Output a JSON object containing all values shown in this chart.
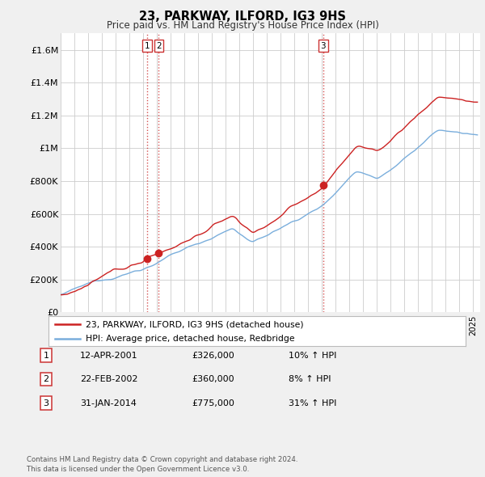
{
  "title": "23, PARKWAY, ILFORD, IG3 9HS",
  "subtitle": "Price paid vs. HM Land Registry's House Price Index (HPI)",
  "ylabel_ticks": [
    "£0",
    "£200K",
    "£400K",
    "£600K",
    "£800K",
    "£1M",
    "£1.2M",
    "£1.4M",
    "£1.6M"
  ],
  "ytick_values": [
    0,
    200000,
    400000,
    600000,
    800000,
    1000000,
    1200000,
    1400000,
    1600000
  ],
  "ylim": [
    0,
    1700000
  ],
  "xlim_start": 1995.0,
  "xlim_end": 2025.5,
  "sale_dates": [
    2001.28,
    2002.14,
    2014.08
  ],
  "sale_prices": [
    326000,
    360000,
    775000
  ],
  "sale_labels": [
    "1",
    "2",
    "3"
  ],
  "vline_color": "#cc3333",
  "dot_color": "#cc2222",
  "legend_label_red": "23, PARKWAY, ILFORD, IG3 9HS (detached house)",
  "legend_label_blue": "HPI: Average price, detached house, Redbridge",
  "table_rows": [
    [
      "1",
      "12-APR-2001",
      "£326,000",
      "10% ↑ HPI"
    ],
    [
      "2",
      "22-FEB-2002",
      "£360,000",
      "8% ↑ HPI"
    ],
    [
      "3",
      "31-JAN-2014",
      "£775,000",
      "31% ↑ HPI"
    ]
  ],
  "footer": "Contains HM Land Registry data © Crown copyright and database right 2024.\nThis data is licensed under the Open Government Licence v3.0.",
  "bg_color": "#f0f0f0",
  "plot_bg_color": "#ffffff",
  "grid_color": "#cccccc",
  "red_line_color": "#cc2222",
  "blue_line_color": "#7aaedc"
}
